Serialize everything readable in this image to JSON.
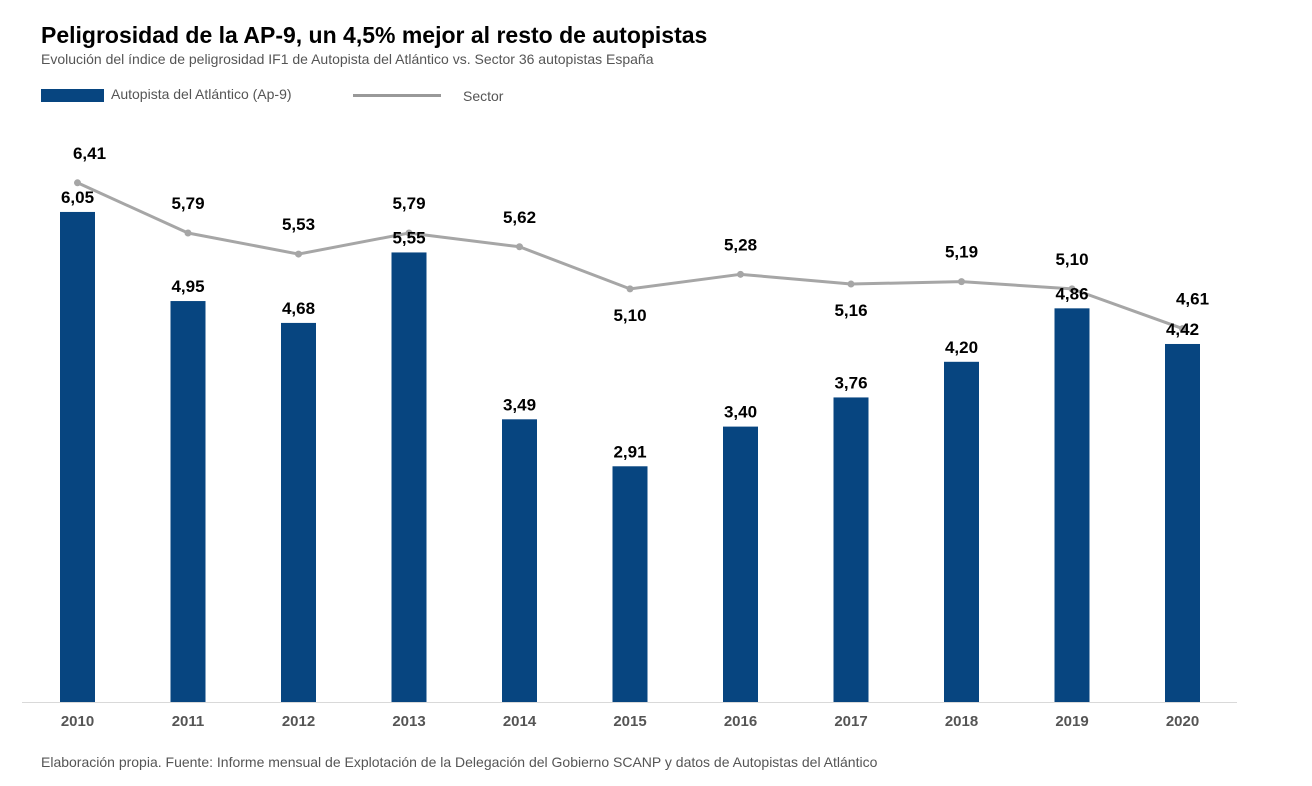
{
  "header": {
    "title": "Peligrosidad de la AP-9, un 4,5% mejor al resto de autopistas",
    "subtitle": "Evolución del índice de peligrosidad IF1 de Autopista del Atlántico vs. Sector 36 autopistas España"
  },
  "legend": {
    "bar_label": "Autopista del Atlántico (Ap-9)",
    "line_label": "Sector"
  },
  "footer": {
    "source": "Elaboración propia. Fuente: Informe mensual de Explotación de la Delegación del Gobierno SCANP y datos de Autopistas del Atlántico"
  },
  "colors": {
    "bar": "#074580",
    "line": "#a6a6a6",
    "axis": "#d9d9d9",
    "tick_text": "#555555",
    "value_text": "#000000"
  },
  "chart_data": {
    "type": "bar",
    "categories": [
      "2010",
      "2011",
      "2012",
      "2013",
      "2014",
      "2015",
      "2016",
      "2017",
      "2018",
      "2019",
      "2020"
    ],
    "series": [
      {
        "name": "Autopista del Atlántico (Ap-9)",
        "type": "bar",
        "values": [
          6.05,
          4.95,
          4.68,
          5.55,
          3.49,
          2.91,
          3.4,
          3.76,
          4.2,
          4.86,
          4.42
        ],
        "labels": [
          "6,05",
          "4,95",
          "4,68",
          "5,55",
          "3,49",
          "2,91",
          "3,40",
          "3,76",
          "4,20",
          "4,86",
          "4,42"
        ]
      },
      {
        "name": "Sector",
        "type": "line",
        "values": [
          6.41,
          5.79,
          5.53,
          5.79,
          5.62,
          5.1,
          5.28,
          5.16,
          5.19,
          5.1,
          4.61
        ],
        "labels": [
          "6,41",
          "5,79",
          "5,53",
          "5,79",
          "5,62",
          "5,10",
          "5,28",
          "5,16",
          "5,19",
          "5,10",
          "4,61"
        ]
      }
    ],
    "ylim": [
      0,
      6.2
    ],
    "grid": false,
    "legend_position": "top-left"
  }
}
